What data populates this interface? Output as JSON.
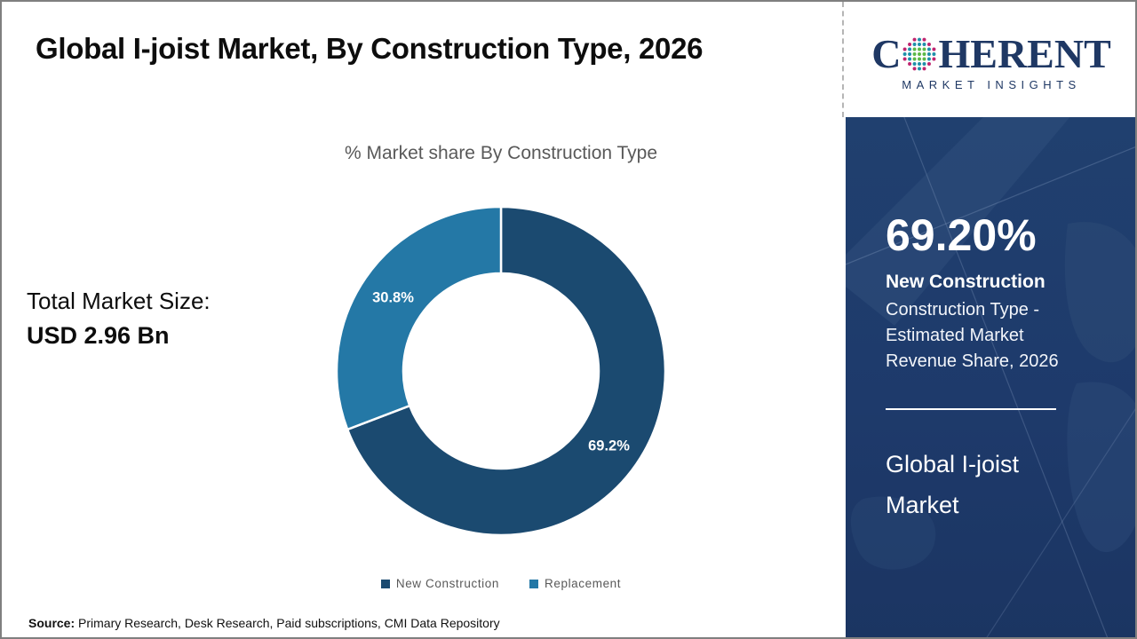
{
  "header": {
    "title": "Global I-joist Market, By Construction Type, 2026"
  },
  "logo": {
    "name_prefix": "C",
    "name_suffix": "HERENT",
    "subtitle": "MARKET INSIGHTS",
    "brand_color": "#1f3864",
    "globe_colors": {
      "teal": "#1f8fa9",
      "green": "#5cb947",
      "magenta": "#c0256f"
    }
  },
  "total_market": {
    "label": "Total Market Size:",
    "value": "USD 2.96 Bn"
  },
  "chart_data": {
    "type": "pie",
    "subtype": "donut",
    "title": "% Market share By Construction Type",
    "start_angle_deg": 0,
    "direction": "clockwise",
    "legend_position": "bottom",
    "categories": [
      "New Construction",
      "Replacement"
    ],
    "values": [
      69.2,
      30.8
    ],
    "segments": [
      {
        "label": "New Construction",
        "value": 69.2,
        "display": "69.2%",
        "color": "#1b4a70"
      },
      {
        "label": "Replacement",
        "value": 30.8,
        "display": "30.8%",
        "color": "#2478a6"
      }
    ]
  },
  "sidebar": {
    "bg_color": "#1e3a6b",
    "headline_value": "69.20%",
    "headline_label": "New Construction",
    "description_lines": [
      "Construction Type -",
      "Estimated Market",
      "Revenue Share, 2026"
    ],
    "footer_lines": [
      "Global I-joist",
      "Market"
    ]
  },
  "source": {
    "label": "Source:",
    "text": " Primary Research, Desk Research, Paid subscriptions, CMI Data Repository"
  }
}
